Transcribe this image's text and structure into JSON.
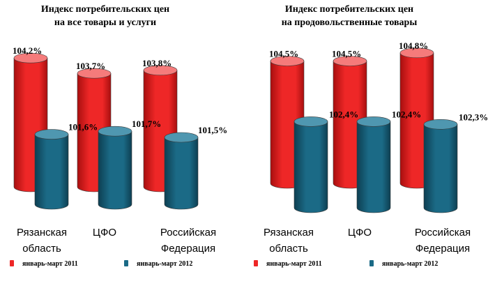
{
  "colors": {
    "red": "#ee2727",
    "red_dark": "#a80f0f",
    "red_top": "#f57b7b",
    "teal": "#1b6a86",
    "teal_dark": "#0d3f52",
    "teal_top": "#4f97b0"
  },
  "chart_data": [
    {
      "type": "bar",
      "title": [
        "Индекс потребительских цен",
        "на все товары и услуги"
      ],
      "categories": [
        "Рязанская\nобласть",
        "ЦФО",
        "Российская\nФедерация"
      ],
      "series": [
        {
          "name": "январь-март 2011",
          "values": [
            104.2,
            103.7,
            103.8
          ],
          "labels": [
            "104,2%",
            "103,7%",
            "103,8%"
          ]
        },
        {
          "name": "январь-март 2012",
          "values": [
            101.6,
            101.7,
            101.5
          ],
          "labels": [
            "101,6%",
            "101,7%",
            "101,5%"
          ]
        }
      ],
      "legend": "bottom"
    },
    {
      "type": "bar",
      "title": [
        "Индекс потребительских цен",
        "на продовольственные товары"
      ],
      "categories": [
        "Рязанская\nобласть",
        "ЦФО",
        "Российская\nФедерация"
      ],
      "series": [
        {
          "name": "январь-март 2011",
          "values": [
            104.5,
            104.5,
            104.8
          ],
          "labels": [
            "104,5%",
            "104,5%",
            "104,8%"
          ]
        },
        {
          "name": "январь-март 2012",
          "values": [
            102.4,
            102.4,
            102.3
          ],
          "labels": [
            "102,4%",
            "102,4%",
            "102,3%"
          ]
        }
      ],
      "legend": "bottom"
    }
  ]
}
